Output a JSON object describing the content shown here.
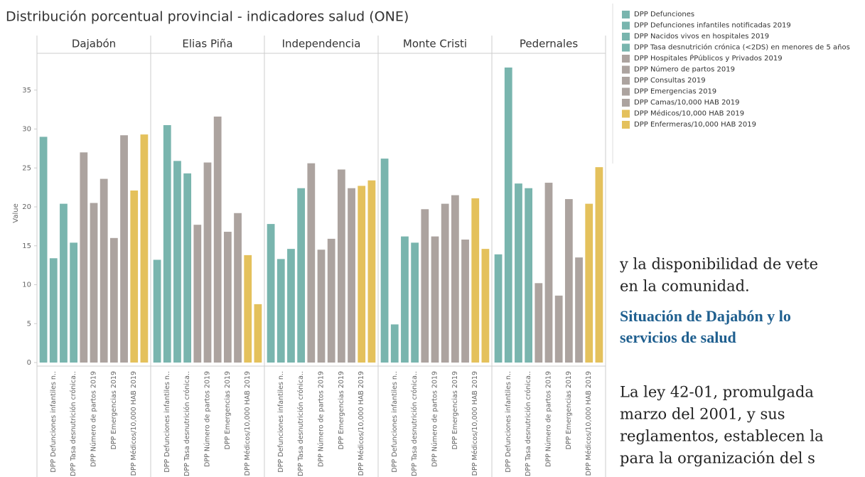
{
  "chart_data": {
    "type": "bar",
    "title": "Distribución porcentual provincial -  indicadores salud (ONE)",
    "y_label": "Value",
    "ylim": [
      0,
      40
    ],
    "yticks": [
      0,
      5,
      10,
      15,
      20,
      25,
      30,
      35
    ],
    "grid": false,
    "categories": [
      null,
      "DPP Defunciones infantiles n..",
      null,
      "DPP Tasa desnutrición crónica..",
      null,
      "DPP Número de partos 2019",
      null,
      "DPP Emergencias 2019",
      null,
      "DPP Médicos/10,000 HAB 2019",
      null
    ],
    "legend": [
      {
        "name": "DPP Defunciones",
        "color": "#79b5ae"
      },
      {
        "name": "DPP Defunciones infantiles  notificadas 2019",
        "color": "#79b5ae"
      },
      {
        "name": "DPP Nacidos vivos en hospitales 2019",
        "color": "#79b5ae"
      },
      {
        "name": "DPP Tasa desnutrición crónica (<2DS) en menores de 5 años",
        "color": "#79b5ae"
      },
      {
        "name": "DPP Hospitales ṔPúblicos y Privados 2019",
        "color": "#aca39f"
      },
      {
        "name": "DPP Número de partos 2019",
        "color": "#aca39f"
      },
      {
        "name": "DPP Consultas 2019",
        "color": "#aca39f"
      },
      {
        "name": "DPP Emergencias 2019",
        "color": "#aca39f"
      },
      {
        "name": "DPP Camas/10,000 HAB 2019",
        "color": "#aca39f"
      },
      {
        "name": "DPP Médicos/10,000 HAB 2019",
        "color": "#e4c15c"
      },
      {
        "name": "DPP Enfermeras/10,000 HAB 2019",
        "color": "#e4c15c"
      }
    ],
    "facets": [
      {
        "name": "Dajabón",
        "values": [
          29.0,
          13.4,
          20.4,
          15.4,
          27.0,
          20.5,
          23.6,
          16.0,
          29.2,
          22.1,
          29.3
        ]
      },
      {
        "name": "Elias Piña",
        "values": [
          13.2,
          30.5,
          25.9,
          24.3,
          17.7,
          25.7,
          31.6,
          16.8,
          19.2,
          13.8,
          7.5
        ]
      },
      {
        "name": "Independencia",
        "values": [
          17.8,
          13.3,
          14.6,
          22.4,
          25.6,
          14.5,
          15.9,
          24.8,
          22.4,
          22.7,
          23.4
        ]
      },
      {
        "name": "Monte Cristi",
        "values": [
          26.2,
          4.9,
          16.2,
          15.4,
          19.7,
          16.2,
          20.4,
          21.5,
          15.8,
          21.1,
          14.6
        ]
      },
      {
        "name": "Pedernales",
        "values": [
          13.9,
          37.9,
          23.0,
          22.4,
          10.2,
          23.1,
          8.6,
          21.0,
          13.5,
          20.4,
          25.1
        ]
      }
    ]
  },
  "document": {
    "lines": [
      "y la disponibilidad de vete",
      "en la comunidad."
    ],
    "heading": [
      "Situación de Dajabón y lo",
      "servicios de salud"
    ],
    "paragraph": [
      "La ley 42-01, promulgada",
      "marzo del 2001, y sus",
      "reglamentos, establecen la",
      "para la organización del s"
    ]
  }
}
